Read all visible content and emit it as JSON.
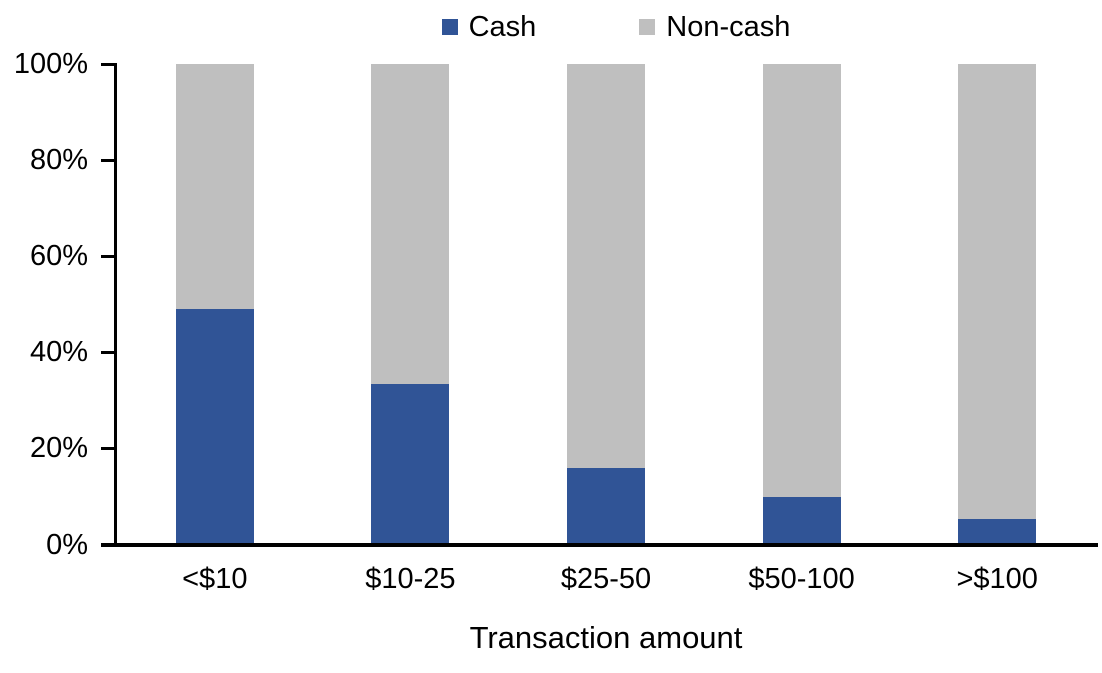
{
  "legend": {
    "position": "top",
    "items": [
      {
        "label": "Cash",
        "color": "#305496"
      },
      {
        "label": "Non-cash",
        "color": "#BFBFBF"
      }
    ]
  },
  "chart_data": {
    "type": "bar",
    "stacked": true,
    "orientation": "vertical",
    "title": "",
    "xlabel": "Transaction amount",
    "ylabel": "",
    "categories": [
      "<$10",
      "$10-25",
      "$25-50",
      "$50-100",
      ">$100"
    ],
    "series": [
      {
        "name": "Cash",
        "color": "#305496",
        "values": [
          49,
          33.5,
          16,
          10,
          5.5
        ]
      },
      {
        "name": "Non-cash",
        "color": "#BFBFBF",
        "values": [
          51,
          66.5,
          84,
          90,
          94.5
        ]
      }
    ],
    "ylim": [
      0,
      100
    ],
    "y_ticks": [
      "0%",
      "20%",
      "40%",
      "60%",
      "80%",
      "100%"
    ],
    "grid": false,
    "legend_position": "top",
    "axis_color": "#000000",
    "text_color": "#000000"
  }
}
